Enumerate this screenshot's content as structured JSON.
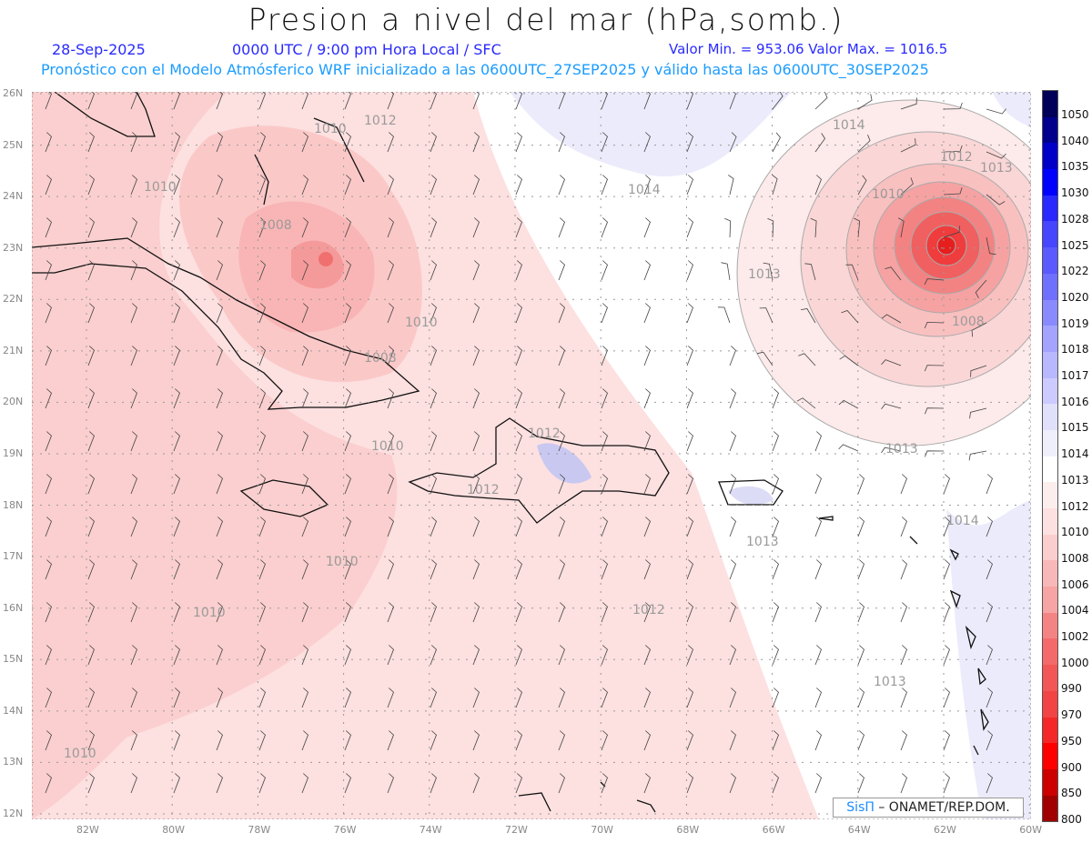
{
  "header": {
    "title": "Presion a nivel del mar (hPa,somb.)",
    "date": "28-Sep-2025",
    "time": "0000 UTC / 9:00 pm Hora Local / SFC",
    "minmax": "Valor Min. = 953.06  Valor Max. = 1016.5",
    "model_info": "Pronóstico con el Modelo Atmósferico WRF inicializado a las 0600UTC_27SEP2025 y válido hasta las  0600UTC_30SEP2025"
  },
  "axes": {
    "lat_labels": [
      "26N",
      "25N",
      "24N",
      "23N",
      "22N",
      "21N",
      "20N",
      "19N",
      "18N",
      "17N",
      "16N",
      "15N",
      "14N",
      "13N",
      "12N"
    ],
    "lon_labels": [
      "82W",
      "80W",
      "78W",
      "76W",
      "74W",
      "72W",
      "70W",
      "68W",
      "66W",
      "64W",
      "62W",
      "60W"
    ]
  },
  "contour_labels": [
    "1010",
    "1012",
    "1010",
    "1008",
    "1010",
    "1008",
    "1010",
    "1012",
    "1012",
    "1010",
    "1010",
    "1010",
    "1014",
    "1014",
    "1013",
    "1012",
    "1013",
    "1010",
    "1008",
    "1013",
    "1013",
    "1014",
    "1013",
    "1012",
    "1013"
  ],
  "colorbar": {
    "labels": [
      "1050",
      "1040",
      "1035",
      "1030",
      "1028",
      "1025",
      "1022",
      "1020",
      "1019",
      "1018",
      "1017",
      "1016",
      "1015",
      "1014",
      "1013",
      "1012",
      "1010",
      "1008",
      "1006",
      "1004",
      "1002",
      "1000",
      "990",
      "970",
      "950",
      "900",
      "850",
      "800"
    ],
    "colors": [
      "#000058",
      "#00008c",
      "#0000c8",
      "#0000ff",
      "#2828ff",
      "#4646ff",
      "#5a5aff",
      "#7070ff",
      "#8a8aff",
      "#a4a4ff",
      "#b8b8ff",
      "#cccaff",
      "#e0e0fa",
      "#efeffc",
      "#ffffff",
      "#fdeeee",
      "#fde0e0",
      "#fbcece",
      "#f8b8b8",
      "#f6a4a4",
      "#f48484",
      "#f46a6a",
      "#f25656",
      "#f24444",
      "#f42828",
      "#ff0000",
      "#cc0000",
      "#a00000",
      "#5a0000"
    ]
  },
  "credit": {
    "logo": "SisΠ",
    "text": "– ONAMET/REP.DOM."
  }
}
